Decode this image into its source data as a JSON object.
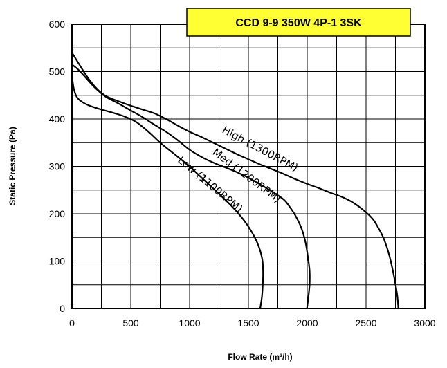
{
  "chart_data": {
    "type": "line",
    "title": "CCD 9-9 350W 4P-1 3SK",
    "xlabel": "Flow Rate (m³/h)",
    "ylabel": "Static Pressure (Pa)",
    "xlim": [
      0,
      3000
    ],
    "ylim": [
      0,
      600
    ],
    "x_ticks": [
      "0",
      "500",
      "1000",
      "1500",
      "2000",
      "2500",
      "3000"
    ],
    "y_ticks": [
      "0",
      "100",
      "200",
      "300",
      "400",
      "500",
      "600"
    ],
    "grid": true,
    "title_box_color": "#FFFF33",
    "line_color": "#000000",
    "series": [
      {
        "name": "High (1300RPM)",
        "points": [
          [
            0,
            540
          ],
          [
            50,
            520
          ],
          [
            100,
            500
          ],
          [
            150,
            482
          ],
          [
            200,
            467
          ],
          [
            250,
            455
          ],
          [
            300,
            447
          ],
          [
            400,
            437
          ],
          [
            500,
            428
          ],
          [
            600,
            420
          ],
          [
            700,
            412
          ],
          [
            800,
            400
          ],
          [
            900,
            386
          ],
          [
            1000,
            373
          ],
          [
            1100,
            362
          ],
          [
            1200,
            350
          ],
          [
            1300,
            338
          ],
          [
            1400,
            326
          ],
          [
            1500,
            315
          ],
          [
            1600,
            304
          ],
          [
            1700,
            294
          ],
          [
            1800,
            284
          ],
          [
            1900,
            273
          ],
          [
            2000,
            263
          ],
          [
            2100,
            254
          ],
          [
            2200,
            244
          ],
          [
            2300,
            235
          ],
          [
            2400,
            222
          ],
          [
            2500,
            203
          ],
          [
            2560,
            188
          ],
          [
            2600,
            172
          ],
          [
            2650,
            148
          ],
          [
            2700,
            110
          ],
          [
            2740,
            65
          ],
          [
            2765,
            28
          ],
          [
            2775,
            0
          ]
        ]
      },
      {
        "name": "Med (1200RPM)",
        "points": [
          [
            0,
            515
          ],
          [
            50,
            505
          ],
          [
            100,
            492
          ],
          [
            150,
            478
          ],
          [
            200,
            465
          ],
          [
            250,
            454
          ],
          [
            300,
            445
          ],
          [
            400,
            432
          ],
          [
            500,
            418
          ],
          [
            600,
            404
          ],
          [
            700,
            388
          ],
          [
            800,
            373
          ],
          [
            900,
            355
          ],
          [
            1000,
            335
          ],
          [
            1100,
            320
          ],
          [
            1200,
            308
          ],
          [
            1300,
            298
          ],
          [
            1400,
            288
          ],
          [
            1500,
            276
          ],
          [
            1600,
            262
          ],
          [
            1700,
            247
          ],
          [
            1800,
            230
          ],
          [
            1850,
            215
          ],
          [
            1900,
            196
          ],
          [
            1950,
            170
          ],
          [
            1985,
            140
          ],
          [
            2005,
            110
          ],
          [
            2020,
            80
          ],
          [
            2020,
            50
          ],
          [
            2008,
            20
          ],
          [
            1998,
            0
          ]
        ]
      },
      {
        "name": "Low (1100RPM)",
        "points": [
          [
            0,
            492
          ],
          [
            15,
            465
          ],
          [
            40,
            447
          ],
          [
            80,
            437
          ],
          [
            150,
            428
          ],
          [
            250,
            420
          ],
          [
            350,
            413
          ],
          [
            450,
            405
          ],
          [
            550,
            393
          ],
          [
            650,
            373
          ],
          [
            750,
            350
          ],
          [
            850,
            330
          ],
          [
            950,
            310
          ],
          [
            1050,
            288
          ],
          [
            1150,
            265
          ],
          [
            1250,
            242
          ],
          [
            1350,
            218
          ],
          [
            1450,
            190
          ],
          [
            1520,
            165
          ],
          [
            1570,
            142
          ],
          [
            1600,
            122
          ],
          [
            1620,
            100
          ],
          [
            1625,
            75
          ],
          [
            1622,
            50
          ],
          [
            1615,
            25
          ],
          [
            1600,
            0
          ]
        ]
      }
    ]
  }
}
